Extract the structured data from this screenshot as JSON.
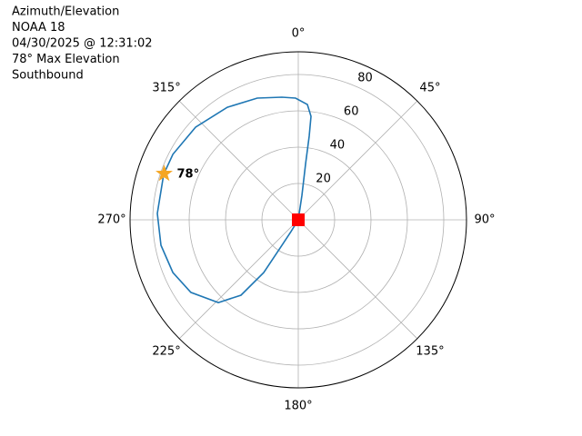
{
  "chart_data": {
    "type": "polar",
    "text_lines": [
      "Azimuth/Elevation",
      "NOAA 18",
      "04/30/2025 @ 12:31:02",
      "78° Max Elevation",
      "Southbound"
    ],
    "series": [
      {
        "color": "#1f77b4",
        "x": [
          8,
          8.4,
          7.4,
          7.4,
          7.0,
          4.5,
          358.7,
          352.4,
          341.4,
          327.8,
          312.1,
          297.6,
          288.7,
          272.6,
          259.5,
          247.2,
          235.9,
          224.0,
          217.2,
          213.2,
          212.7,
          211.6,
          212
        ],
        "values": [
          0,
          13.6,
          31.3,
          46.4,
          57.4,
          63.7,
          67,
          68.1,
          70.7,
          73.2,
          76.1,
          77.8,
          78.1,
          77.6,
          76.8,
          74.8,
          71.3,
          63.3,
          52.1,
          34.7,
          16.6,
          7.6,
          0
        ]
      }
    ],
    "start": {
      "azimuth": 8,
      "elevation": 0,
      "color": "#228b22"
    },
    "end": {
      "azimuth": 212,
      "elevation": 0,
      "color": "#ff0000"
    },
    "peak": {
      "azimuth": 289,
      "elevation": 78,
      "label": "78°",
      "color": "#f5a623"
    },
    "ylim": [
      0,
      92.5
    ],
    "yticks": [
      20,
      40,
      60,
      80
    ],
    "xticks": [
      {
        "value": 0,
        "label": "0°"
      },
      {
        "value": 45,
        "label": "45°"
      },
      {
        "value": 90,
        "label": "90°"
      },
      {
        "value": 135,
        "label": "135°"
      },
      {
        "value": 180,
        "label": "180°"
      },
      {
        "value": 225,
        "label": "225°"
      },
      {
        "value": 270,
        "label": "270°"
      },
      {
        "value": 315,
        "label": "315°"
      }
    ],
    "grid": true
  }
}
